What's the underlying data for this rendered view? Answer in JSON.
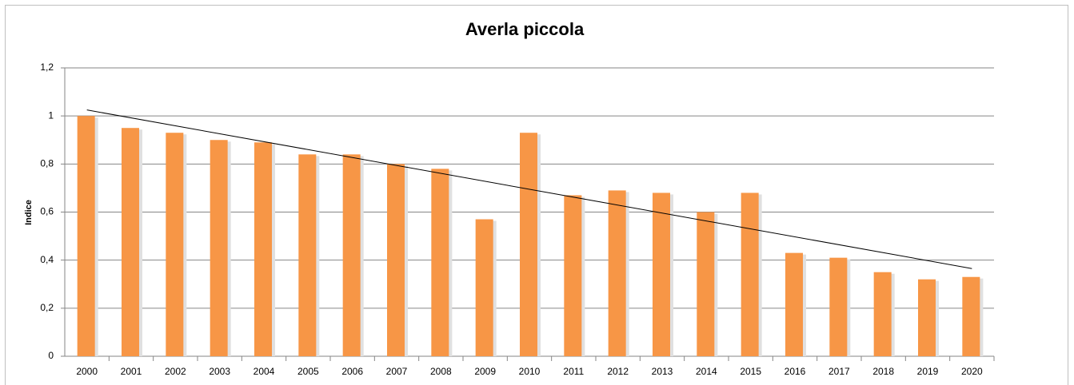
{
  "chart_data": {
    "type": "bar",
    "title": "Averla piccola",
    "y_label": "Indice",
    "categories": [
      "2000",
      "2001",
      "2002",
      "2003",
      "2004",
      "2005",
      "2006",
      "2007",
      "2008",
      "2009",
      "2010",
      "2011",
      "2012",
      "2013",
      "2014",
      "2015",
      "2016",
      "2017",
      "2018",
      "2019",
      "2020"
    ],
    "values": [
      1,
      0.95,
      0.93,
      0.9,
      0.89,
      0.84,
      0.84,
      0.8,
      0.78,
      0.57,
      0.93,
      0.67,
      0.69,
      0.68,
      0.6,
      0.68,
      0.43,
      0.41,
      0.35,
      0.32,
      0.33
    ],
    "color": "#f79646",
    "trendline": {
      "values": [
        1.025,
        0.365
      ],
      "color": "#000000"
    },
    "ylim": [
      0,
      1.2
    ],
    "yticks": [
      0,
      {
        "value": 0.2,
        "label": "0,2"
      },
      {
        "value": 0.4,
        "label": "0,4"
      },
      {
        "value": 0.6,
        "label": "0,6"
      },
      {
        "value": 0.8,
        "label": "0,8"
      },
      1,
      {
        "value": 1.2,
        "label": "1,2"
      }
    ],
    "grid": true
  }
}
